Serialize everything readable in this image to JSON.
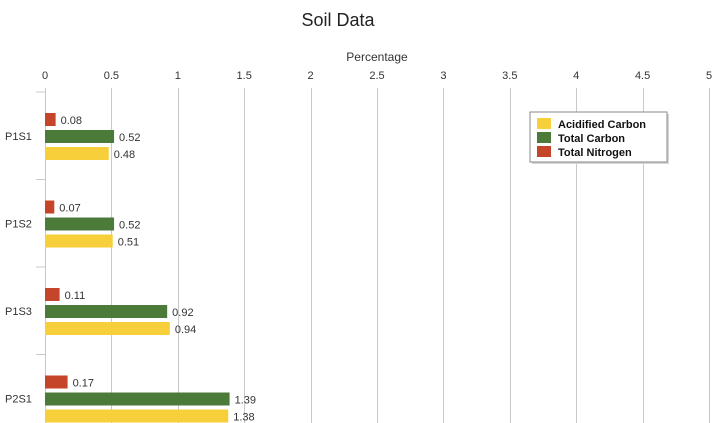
{
  "chart_data": {
    "type": "bar",
    "orientation": "horizontal",
    "title": "Soil Data",
    "xlabel": "Percentage",
    "ylabel": "",
    "xlim": [
      0,
      5
    ],
    "x_ticks": [
      "0",
      "0.5",
      "1",
      "1.5",
      "2",
      "2.5",
      "3",
      "3.5",
      "4",
      "4.5",
      "5"
    ],
    "x_tick_values": [
      0,
      0.5,
      1,
      1.5,
      2,
      2.5,
      3,
      3.5,
      4,
      4.5,
      5
    ],
    "x_axis_position": "top",
    "categories": [
      "P1S1",
      "P1S2",
      "P1S3",
      "P2S1"
    ],
    "series": [
      {
        "name": "Total Nitrogen",
        "color": "#c4452a",
        "values": [
          0.08,
          0.07,
          0.11,
          0.17
        ],
        "labels": [
          "0.08",
          "0.07",
          "0.11",
          "0.17"
        ]
      },
      {
        "name": "Total Carbon",
        "color": "#4c7a38",
        "values": [
          0.52,
          0.52,
          0.92,
          1.39
        ],
        "labels": [
          "0.52",
          "0.52",
          "0.92",
          "1.39"
        ]
      },
      {
        "name": "Acidified Carbon",
        "color": "#f7cf3a",
        "values": [
          0.48,
          0.51,
          0.94,
          1.38
        ],
        "labels": [
          "0.48",
          "0.51",
          "0.94",
          "1.38"
        ]
      }
    ],
    "legend": {
      "placement": "top-right",
      "order": [
        "Acidified Carbon",
        "Total Carbon",
        "Total Nitrogen"
      ]
    },
    "grid": {
      "vertical": true,
      "horizontal": false,
      "color": "#c8c8c8"
    }
  }
}
